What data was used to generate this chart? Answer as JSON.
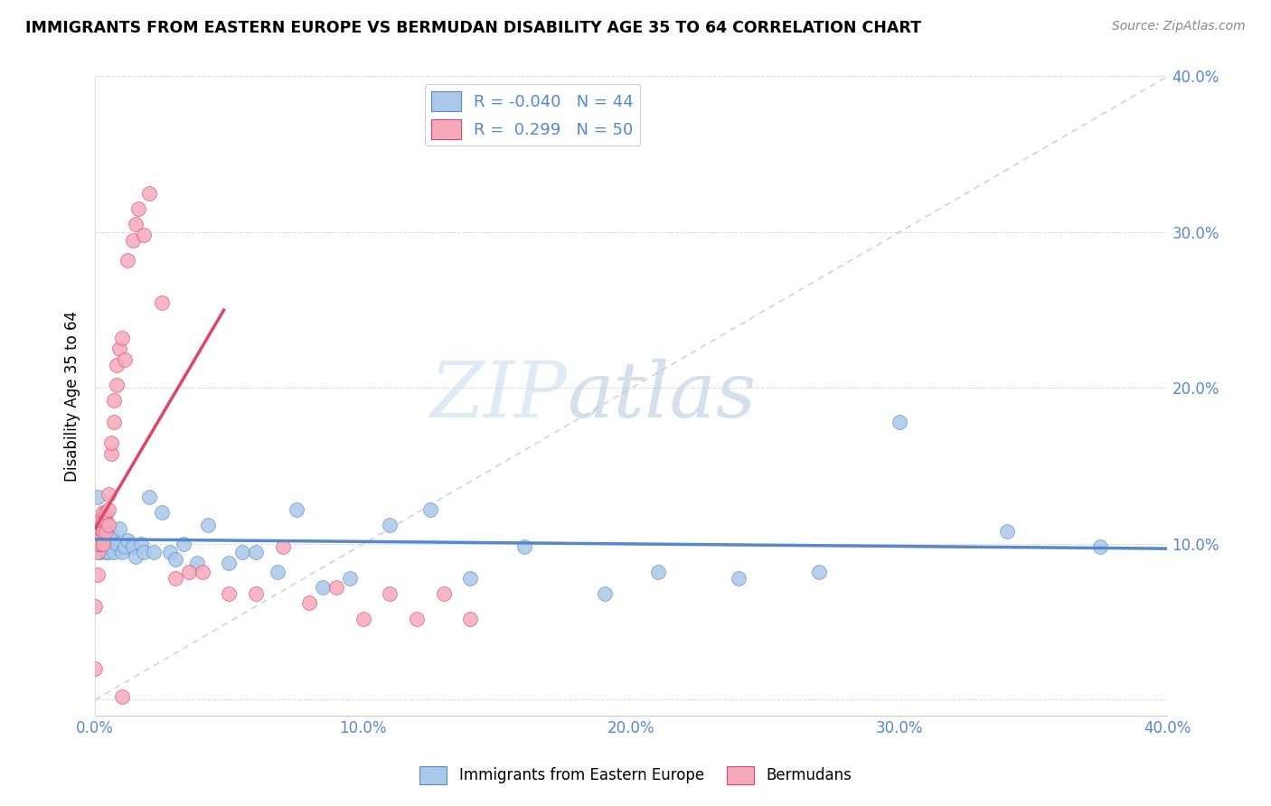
{
  "title": "IMMIGRANTS FROM EASTERN EUROPE VS BERMUDAN DISABILITY AGE 35 TO 64 CORRELATION CHART",
  "source": "Source: ZipAtlas.com",
  "ylabel": "Disability Age 35 to 64",
  "legend_label1": "Immigrants from Eastern Europe",
  "legend_label2": "Bermudans",
  "R1": -0.04,
  "N1": 44,
  "R2": 0.299,
  "N2": 50,
  "color1": "#aac8e8",
  "color2": "#f5aabb",
  "line_color1": "#5588cc",
  "line_color2": "#e04466",
  "xlim": [
    0.0,
    0.4
  ],
  "ylim": [
    -0.01,
    0.4
  ],
  "xticks": [
    0.0,
    0.1,
    0.2,
    0.3,
    0.4
  ],
  "yticks": [
    0.0,
    0.1,
    0.2,
    0.3,
    0.4
  ],
  "xticklabels": [
    "0.0%",
    "10.0%",
    "20.0%",
    "30.0%",
    "40.0%"
  ],
  "right_yticklabels": [
    "10.0%",
    "20.0%",
    "30.0%",
    "40.0%"
  ],
  "watermark_zip": "ZIP",
  "watermark_atlas": "atlas",
  "blue_trend_x": [
    0.0,
    0.4
  ],
  "blue_trend_y": [
    0.103,
    0.097
  ],
  "pink_trend_x": [
    0.0,
    0.048
  ],
  "pink_trend_y": [
    0.11,
    0.25
  ],
  "blue_scatter_x": [
    0.001,
    0.002,
    0.002,
    0.003,
    0.004,
    0.005,
    0.005,
    0.006,
    0.007,
    0.008,
    0.009,
    0.01,
    0.011,
    0.012,
    0.014,
    0.015,
    0.017,
    0.018,
    0.02,
    0.022,
    0.025,
    0.028,
    0.03,
    0.033,
    0.038,
    0.042,
    0.05,
    0.055,
    0.06,
    0.068,
    0.075,
    0.085,
    0.095,
    0.11,
    0.125,
    0.14,
    0.16,
    0.19,
    0.21,
    0.24,
    0.27,
    0.3,
    0.34,
    0.375
  ],
  "blue_scatter_y": [
    0.13,
    0.105,
    0.095,
    0.1,
    0.095,
    0.1,
    0.095,
    0.105,
    0.095,
    0.1,
    0.11,
    0.095,
    0.098,
    0.102,
    0.098,
    0.092,
    0.1,
    0.095,
    0.13,
    0.095,
    0.12,
    0.095,
    0.09,
    0.1,
    0.088,
    0.112,
    0.088,
    0.095,
    0.095,
    0.082,
    0.122,
    0.072,
    0.078,
    0.112,
    0.122,
    0.078,
    0.098,
    0.068,
    0.082,
    0.078,
    0.082,
    0.178,
    0.108,
    0.098
  ],
  "pink_scatter_x": [
    0.0,
    0.0,
    0.001,
    0.001,
    0.001,
    0.001,
    0.002,
    0.002,
    0.002,
    0.002,
    0.003,
    0.003,
    0.003,
    0.003,
    0.004,
    0.004,
    0.004,
    0.005,
    0.005,
    0.005,
    0.006,
    0.006,
    0.007,
    0.007,
    0.008,
    0.008,
    0.009,
    0.01,
    0.011,
    0.012,
    0.014,
    0.015,
    0.016,
    0.018,
    0.02,
    0.025,
    0.03,
    0.035,
    0.04,
    0.05,
    0.06,
    0.07,
    0.08,
    0.09,
    0.1,
    0.11,
    0.12,
    0.13,
    0.14,
    0.01
  ],
  "pink_scatter_y": [
    0.02,
    0.06,
    0.08,
    0.095,
    0.1,
    0.11,
    0.1,
    0.105,
    0.11,
    0.115,
    0.1,
    0.108,
    0.115,
    0.12,
    0.108,
    0.115,
    0.12,
    0.112,
    0.122,
    0.132,
    0.158,
    0.165,
    0.178,
    0.192,
    0.202,
    0.215,
    0.225,
    0.232,
    0.218,
    0.282,
    0.295,
    0.305,
    0.315,
    0.298,
    0.325,
    0.255,
    0.078,
    0.082,
    0.082,
    0.068,
    0.068,
    0.098,
    0.062,
    0.072,
    0.052,
    0.068,
    0.052,
    0.068,
    0.052,
    0.002
  ]
}
